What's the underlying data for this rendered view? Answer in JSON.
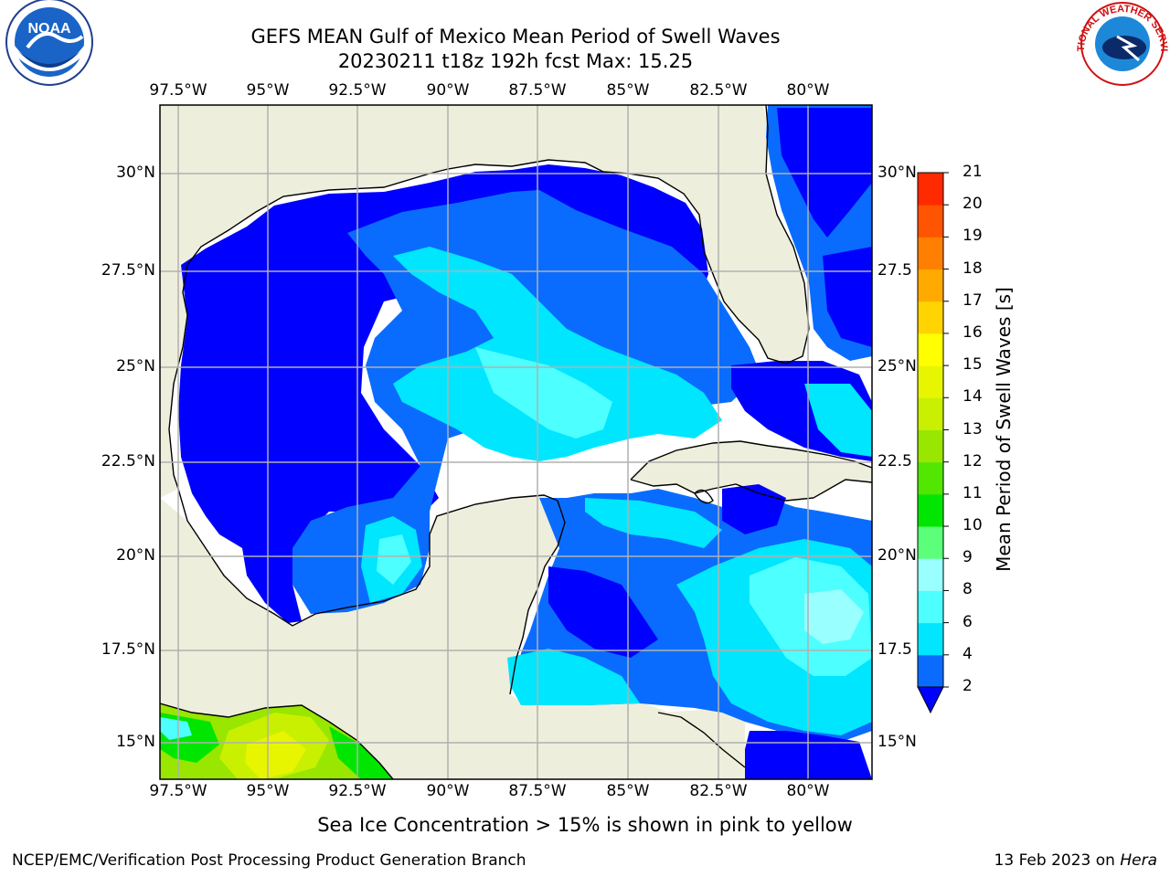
{
  "title_line1": "GEFS MEAN Gulf of Mexico Mean Period of Swell Waves",
  "title_line2": "20230211 t18z 192h fcst   Max: 15.25",
  "lon_labels": [
    "97.5°W",
    "95°W",
    "92.5°W",
    "90°W",
    "87.5°W",
    "85°W",
    "82.5°W",
    "80°W"
  ],
  "lat_labels_left": [
    "30°N",
    "27.5°N",
    "25°N",
    "22.5°N",
    "20°N",
    "17.5°N",
    "15°N"
  ],
  "lat_labels_right": [
    "30°N",
    "27.5",
    "25°N",
    "22.5",
    "20°N",
    "17.5",
    "15°N"
  ],
  "colorbar": {
    "label": "Mean Period of Swell Waves [s]",
    "ticks": [
      "2",
      "4",
      "6",
      "8",
      "9",
      "10",
      "11",
      "12",
      "13",
      "14",
      "15",
      "16",
      "17",
      "18",
      "19",
      "20",
      "21"
    ],
    "colors": [
      "#0a6cff",
      "#00e6ff",
      "#4dffff",
      "#99ffff",
      "#5cff7a",
      "#00e600",
      "#52e600",
      "#99e600",
      "#c8f000",
      "#e8f500",
      "#ffff00",
      "#ffd400",
      "#ffaa00",
      "#ff8000",
      "#ff5500",
      "#ff2a00"
    ],
    "under_color": "#0000ff"
  },
  "colors": {
    "land": "#eeeedc",
    "deep_blue": "#0000ff",
    "mid_blue": "#0a6cff",
    "cyan": "#00e6ff",
    "light_cyan": "#4dffff",
    "pale_cyan": "#99ffff",
    "grid": "#b0b0b0"
  },
  "sea_ice_note": "Sea Ice Concentration > 15% is shown in pink to yellow",
  "footer_left": "NCEP/EMC/Verification Post Processing Product Generation Branch",
  "footer_date": "13 Feb 2023 on ",
  "footer_host": "Hera",
  "logo_left": {
    "icon": "noaa-logo",
    "text": "NOAA"
  },
  "logo_right": {
    "icon": "nws-logo",
    "text": "NATIONAL WEATHER SERVICE"
  }
}
